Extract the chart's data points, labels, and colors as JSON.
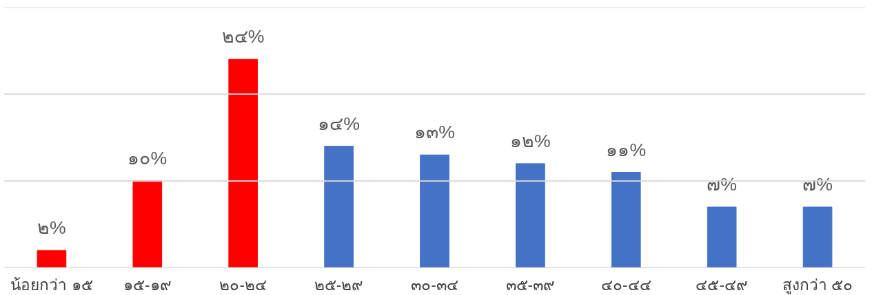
{
  "chart_data": {
    "type": "bar",
    "categories": [
      "น้อยกว่า ๑๕",
      "๑๕-๑๙",
      "๒๐-๒๔",
      "๒๕-๒๙",
      "๓๐-๓๔",
      "๓๕-๓๙",
      "๔๐-๔๔",
      "๔๕-๔๙",
      "สูงกว่า ๕๐"
    ],
    "values": [
      2,
      10,
      24,
      14,
      13,
      12,
      11,
      7,
      7
    ],
    "value_labels": [
      "๒%",
      "๑๐%",
      "๒๔%",
      "๑๔%",
      "๑๓%",
      "๑๒%",
      "๑๑%",
      "๗%",
      "๗%"
    ],
    "colors": [
      "#ff0000",
      "#ff0000",
      "#ff0000",
      "#4472c4",
      "#4472c4",
      "#4472c4",
      "#4472c4",
      "#4472c4",
      "#4472c4"
    ],
    "ylim": [
      0,
      30
    ],
    "yticks": [
      {
        "value": 0,
        "label": null
      },
      {
        "value": 10,
        "label": null
      },
      {
        "value": 20,
        "label": null
      },
      {
        "value": 30,
        "label": null
      }
    ],
    "grid": "y",
    "tick_labels": "x"
  }
}
